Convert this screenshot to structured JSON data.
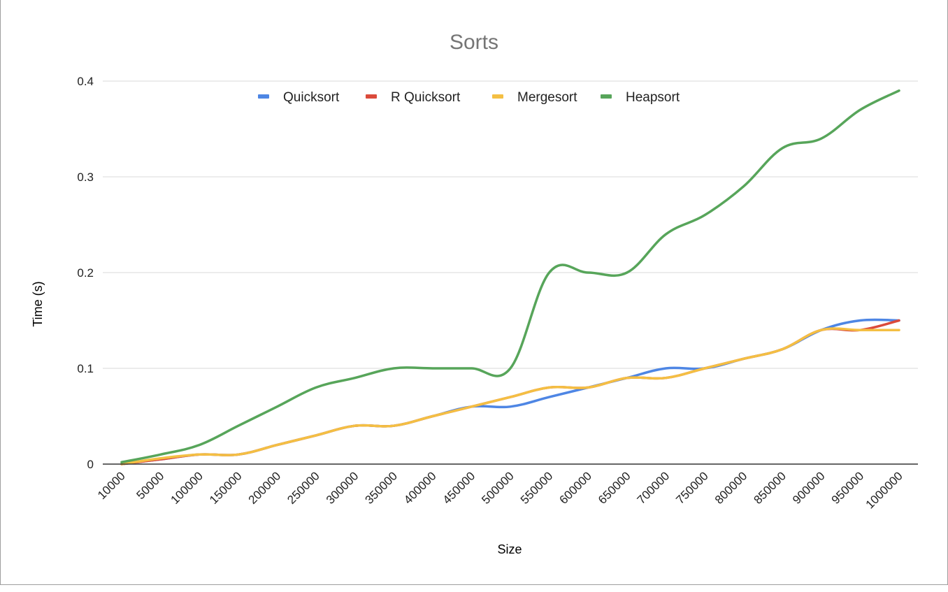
{
  "chart_data": {
    "type": "line",
    "title": "Sorts",
    "xlabel": "Size",
    "ylabel": "Time (s)",
    "ylim": [
      0,
      0.4
    ],
    "yticks": [
      "0",
      "0.1",
      "0.2",
      "0.3",
      "0.4"
    ],
    "y_tick_values": [
      0,
      0.1,
      0.2,
      0.3,
      0.4
    ],
    "grid": true,
    "legend_position": "top",
    "smooth": true,
    "categories": [
      "10000",
      "50000",
      "100000",
      "150000",
      "200000",
      "250000",
      "300000",
      "350000",
      "400000",
      "450000",
      "500000",
      "550000",
      "600000",
      "650000",
      "700000",
      "750000",
      "800000",
      "850000",
      "900000",
      "950000",
      "1000000"
    ],
    "series": [
      {
        "name": "Quicksort",
        "color": "#4e86e4",
        "values": [
          0,
          0.005,
          0.01,
          0.01,
          0.02,
          0.03,
          0.04,
          0.04,
          0.05,
          0.06,
          0.06,
          0.07,
          0.08,
          0.09,
          0.1,
          0.1,
          0.11,
          0.12,
          0.14,
          0.15,
          0.15
        ]
      },
      {
        "name": "R Quicksort",
        "color": "#db4a3b",
        "values": [
          0,
          0.005,
          0.01,
          0.01,
          0.02,
          0.03,
          0.04,
          0.04,
          0.05,
          0.06,
          0.07,
          0.08,
          0.08,
          0.09,
          0.09,
          0.1,
          0.11,
          0.12,
          0.14,
          0.14,
          0.15
        ]
      },
      {
        "name": "Mergesort",
        "color": "#f4bf43",
        "values": [
          0,
          0.006,
          0.01,
          0.01,
          0.02,
          0.03,
          0.04,
          0.04,
          0.05,
          0.06,
          0.07,
          0.08,
          0.08,
          0.09,
          0.09,
          0.1,
          0.11,
          0.12,
          0.14,
          0.14,
          0.14
        ]
      },
      {
        "name": "Heapsort",
        "color": "#57a55a",
        "values": [
          0.002,
          0.01,
          0.02,
          0.04,
          0.06,
          0.08,
          0.09,
          0.1,
          0.1,
          0.1,
          0.1,
          0.2,
          0.2,
          0.2,
          0.24,
          0.26,
          0.29,
          0.33,
          0.34,
          0.37,
          0.39
        ]
      }
    ]
  }
}
